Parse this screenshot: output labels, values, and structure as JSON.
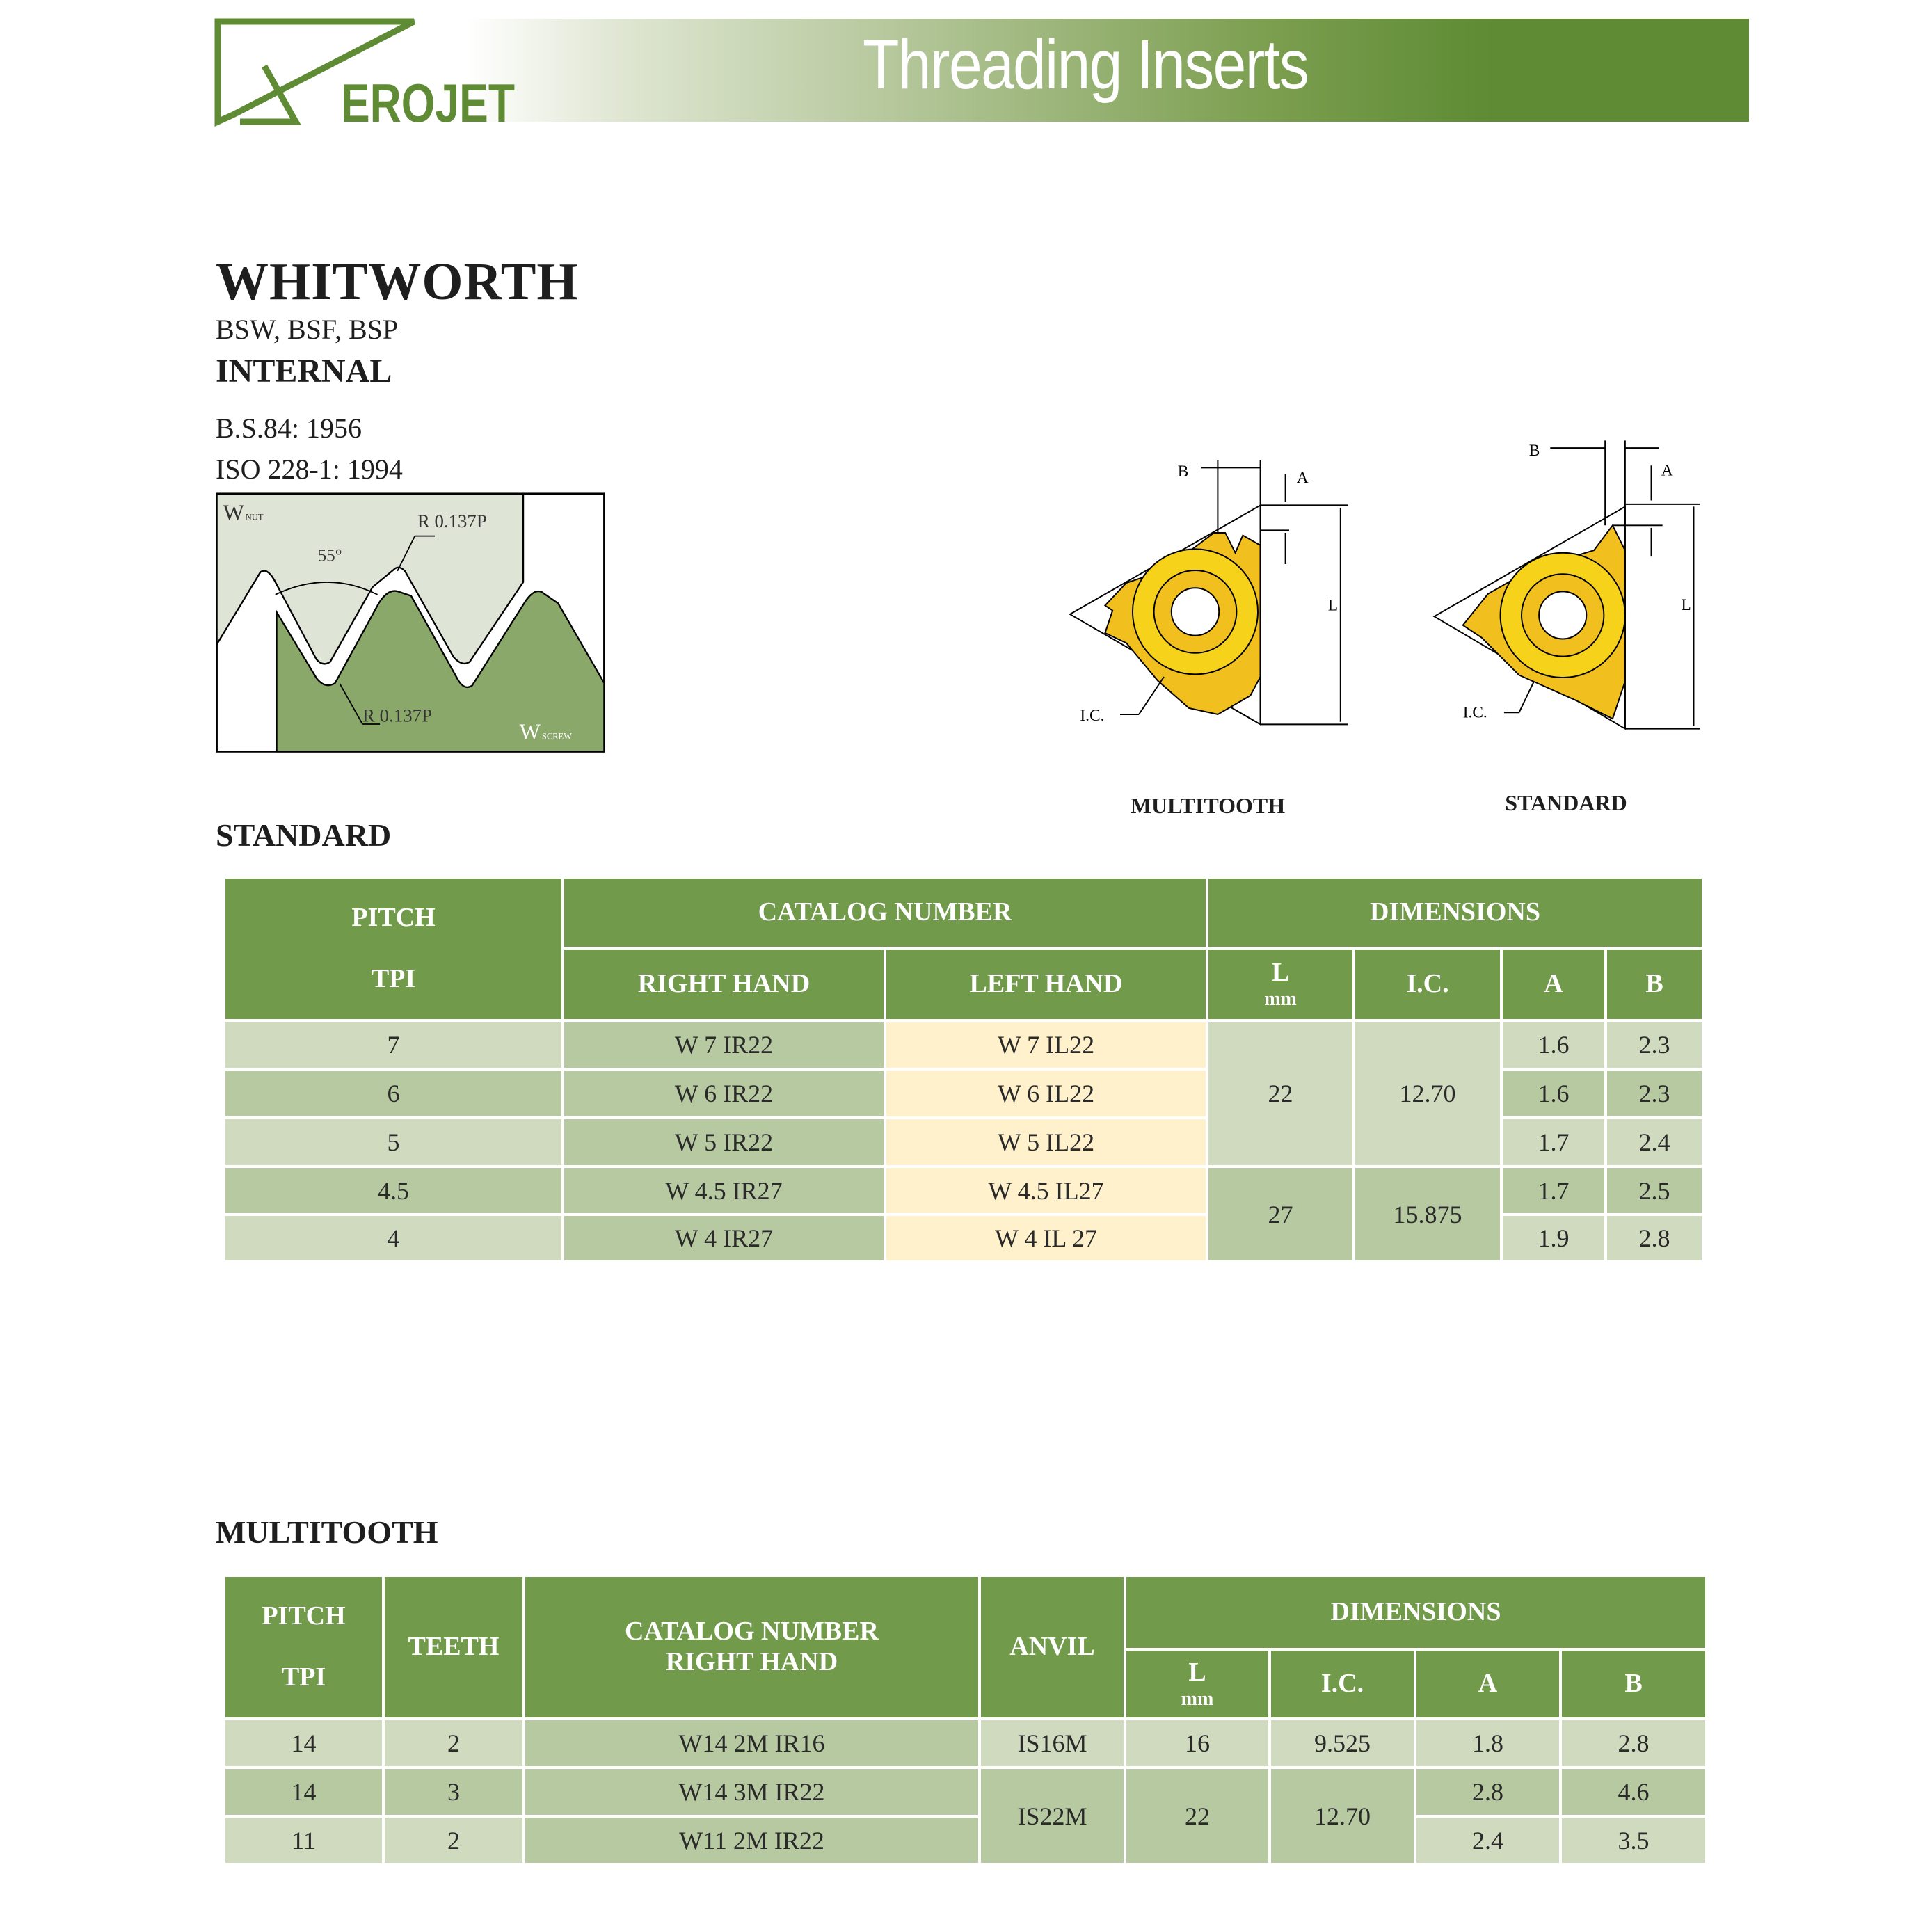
{
  "header": {
    "logo_text": "EROJET",
    "title": "Threading Inserts",
    "colors": {
      "band_dark": "#5e8b33",
      "logo": "#5e8b33"
    }
  },
  "section": {
    "title": "WHITWORTH",
    "subtitle": "BSW, BSF, BSP",
    "type": "INTERNAL",
    "standards": [
      "B.S.84: 1956",
      "ISO 228-1: 1994"
    ]
  },
  "thread_diagram": {
    "nut_label": "W",
    "nut_sub": "NUT",
    "screw_label": "W",
    "screw_sub": "SCREW",
    "angle": "55°",
    "radius_top": "R 0.137P",
    "radius_bottom": "R 0.137P"
  },
  "inserts": {
    "multitooth": {
      "caption": "MULTITOOTH",
      "b": "B",
      "a": "A",
      "l": "L",
      "ic": "I.C."
    },
    "standard": {
      "caption": "STANDARD",
      "b": "B",
      "a": "A",
      "l": "L",
      "ic": "I.C."
    },
    "colors": {
      "insert": "#f2c01e",
      "insert_face": "#f7d21a"
    }
  },
  "standard_table": {
    "heading": "STANDARD",
    "headers": {
      "pitch": "PITCH",
      "tpi": "TPI",
      "catalog": "CATALOG NUMBER",
      "right": "RIGHT HAND",
      "left": "LEFT HAND",
      "dimensions": "DIMENSIONS",
      "l": "L",
      "mm": "mm",
      "ic": "I.C.",
      "a": "A",
      "b": "B"
    },
    "rows": [
      {
        "tpi": "7",
        "right": "W 7 IR22",
        "left": "W 7 IL22",
        "a": "1.6",
        "b": "2.3"
      },
      {
        "tpi": "6",
        "right": "W 6 IR22",
        "left": "W 6 IL22",
        "a": "1.6",
        "b": "2.3"
      },
      {
        "tpi": "5",
        "right": "W 5 IR22",
        "left": "W 5 IL22",
        "a": "1.7",
        "b": "2.4"
      },
      {
        "tpi": "4.5",
        "right": "W 4.5 IR27",
        "left": "W 4.5 IL27",
        "a": "1.7",
        "b": "2.5"
      },
      {
        "tpi": "4",
        "right": "W 4 IR27",
        "left": "W 4 IL 27",
        "a": "1.9",
        "b": "2.8"
      }
    ],
    "groups": [
      {
        "l": "22",
        "ic": "12.70"
      },
      {
        "l": "27",
        "ic": "15.875"
      }
    ]
  },
  "multitooth_table": {
    "heading": "MULTITOOTH",
    "headers": {
      "pitch": "PITCH",
      "tpi": "TPI",
      "teeth": "TEETH",
      "catalog": "CATALOG NUMBER",
      "right": "RIGHT  HAND",
      "anvil": "ANVIL",
      "dimensions": "DIMENSIONS",
      "l": "L",
      "mm": "mm",
      "ic": "I.C.",
      "a": "A",
      "b": "B"
    },
    "rows": [
      {
        "tpi": "14",
        "teeth": "2",
        "catalog": "W14 2M IR16",
        "anvil": "IS16M",
        "l": "16",
        "ic": "9.525",
        "a": "1.8",
        "b": "2.8"
      },
      {
        "tpi": "14",
        "teeth": "3",
        "catalog": "W14 3M IR22",
        "a": "2.8",
        "b": "4.6"
      },
      {
        "tpi": "11",
        "teeth": "2",
        "catalog": "W11 2M IR22",
        "a": "2.4",
        "b": "3.5"
      }
    ],
    "group": {
      "anvil": "IS22M",
      "l": "22",
      "ic": "12.70"
    }
  }
}
